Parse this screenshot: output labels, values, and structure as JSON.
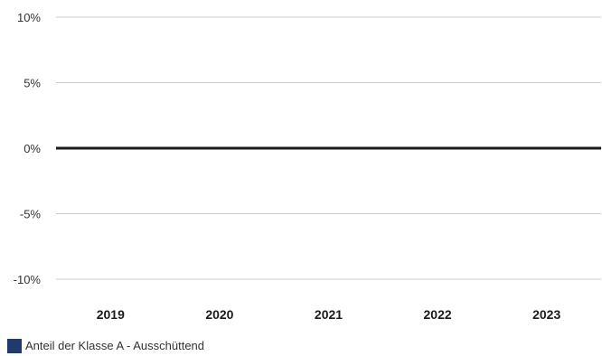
{
  "chart_data": {
    "type": "bar",
    "categories": [
      "2019",
      "2020",
      "2021",
      "2022",
      "2023"
    ],
    "series": [
      {
        "name": "Anteil der Klasse A - Ausschüttend",
        "values": [
          0,
          0,
          0,
          0,
          0
        ],
        "color": "#1f3a6b"
      }
    ],
    "y_ticks": [
      10,
      5,
      0,
      -5,
      -10
    ],
    "y_tick_labels": [
      "10%",
      "5%",
      "0%",
      "-5%",
      "-10%"
    ],
    "ylim": [
      -10,
      10
    ],
    "grid": true,
    "legend_position": "bottom-left",
    "colors": {
      "grid": "#cccccc",
      "zero_line": "#1a1a1a",
      "tick_text": "#333333",
      "category_text": "#1a1a1a"
    }
  }
}
